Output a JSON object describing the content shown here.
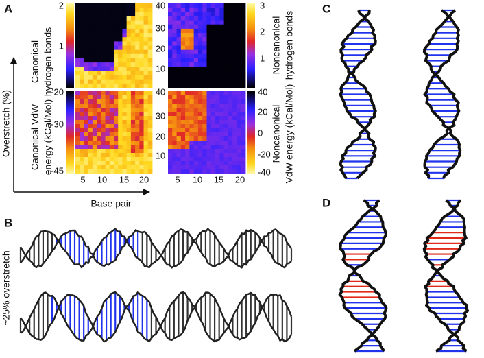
{
  "panel_labels": [
    "A",
    "B",
    "C",
    "D"
  ],
  "panel_a": {
    "canonical_hbonds": {
      "label_lines": [
        "Canonical",
        "hydrogen bonds"
      ],
      "colorbar_ticks": [
        2,
        1
      ]
    },
    "canonical_vdw": {
      "label_lines": [
        "Canonical VdW",
        "energy (kCal/Mol)"
      ],
      "colorbar_ticks": [
        -20,
        -30,
        -45
      ]
    },
    "noncanonical_hbonds": {
      "label_lines": [
        "Noncanonical",
        "hydrogen bonds"
      ],
      "colorbar_ticks": [
        3,
        2,
        1
      ]
    },
    "noncanonical_vdw": {
      "label_lines": [
        "Noncanonical",
        "VdW energy (kCal/Mol)"
      ],
      "colorbar_ticks": [
        40,
        20,
        0,
        -20,
        -40
      ]
    },
    "overstretch_ticks_top": [
      40,
      30,
      20,
      10
    ],
    "overstretch_ticks_bottom": [
      40,
      30,
      20,
      10
    ],
    "base_pair_ticks": [
      5,
      10,
      15,
      20
    ],
    "y_axis_label": "Overstretch (%)",
    "x_axis_label": "Base pair"
  },
  "panel_b": {
    "annotation": "~25% overstretch"
  }
}
